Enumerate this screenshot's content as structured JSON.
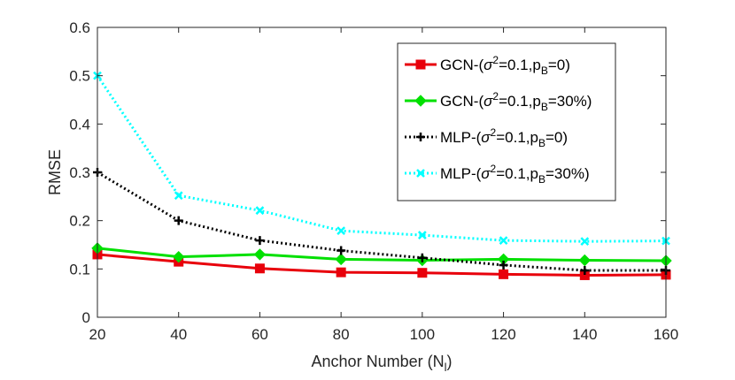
{
  "chart_data": {
    "type": "line",
    "title": "",
    "xlabel": "Anchor Number (N",
    "xlabel_sub": "l",
    "xlabel_end": ")",
    "ylabel": "RMSE",
    "x": [
      20,
      40,
      60,
      80,
      100,
      120,
      140,
      160
    ],
    "xlim": [
      20,
      160
    ],
    "ylim": [
      0,
      0.6
    ],
    "xticks": [
      "20",
      "40",
      "60",
      "80",
      "100",
      "120",
      "140",
      "160"
    ],
    "yticks": [
      "0",
      "0.1",
      "0.2",
      "0.3",
      "0.4",
      "0.5",
      "0.6"
    ],
    "grid": false,
    "legend_position": "top-right",
    "series": [
      {
        "name": "GCN-(σ2=0.1,pB=0)",
        "label_prefix": "GCN-(",
        "label_sigma": "σ",
        "label_sup": "2",
        "label_mid": "=0.1,p",
        "label_sub": "B",
        "label_end": "=0)",
        "color": "#e8000b",
        "line_style": "solid",
        "marker": "square",
        "values": [
          0.13,
          0.115,
          0.101,
          0.093,
          0.092,
          0.089,
          0.087,
          0.088
        ]
      },
      {
        "name": "GCN-(σ2=0.1,pB=30%)",
        "label_prefix": "GCN-(",
        "label_sigma": "σ",
        "label_sup": "2",
        "label_mid": "=0.1,p",
        "label_sub": "B",
        "label_end": "=30%)",
        "color": "#00e000",
        "line_style": "solid",
        "marker": "diamond",
        "values": [
          0.143,
          0.125,
          0.13,
          0.12,
          0.118,
          0.12,
          0.118,
          0.117
        ]
      },
      {
        "name": "MLP-(σ2=0.1,pB=0)",
        "label_prefix": "MLP-(",
        "label_sigma": "σ",
        "label_sup": "2",
        "label_mid": "=0.1,p",
        "label_sub": "B",
        "label_end": "=0)",
        "color": "#000000",
        "line_style": "dotted",
        "marker": "plus",
        "values": [
          0.3,
          0.2,
          0.159,
          0.138,
          0.123,
          0.108,
          0.097,
          0.097
        ]
      },
      {
        "name": "MLP-(σ2=0.1,pB=30%)",
        "label_prefix": "MLP-(",
        "label_sigma": "σ",
        "label_sup": "2",
        "label_mid": "=0.1,p",
        "label_sub": "B",
        "label_end": "=30%)",
        "color": "#00ffff",
        "line_style": "dotted",
        "marker": "x",
        "values": [
          0.5,
          0.252,
          0.221,
          0.179,
          0.17,
          0.159,
          0.157,
          0.158
        ]
      }
    ]
  }
}
